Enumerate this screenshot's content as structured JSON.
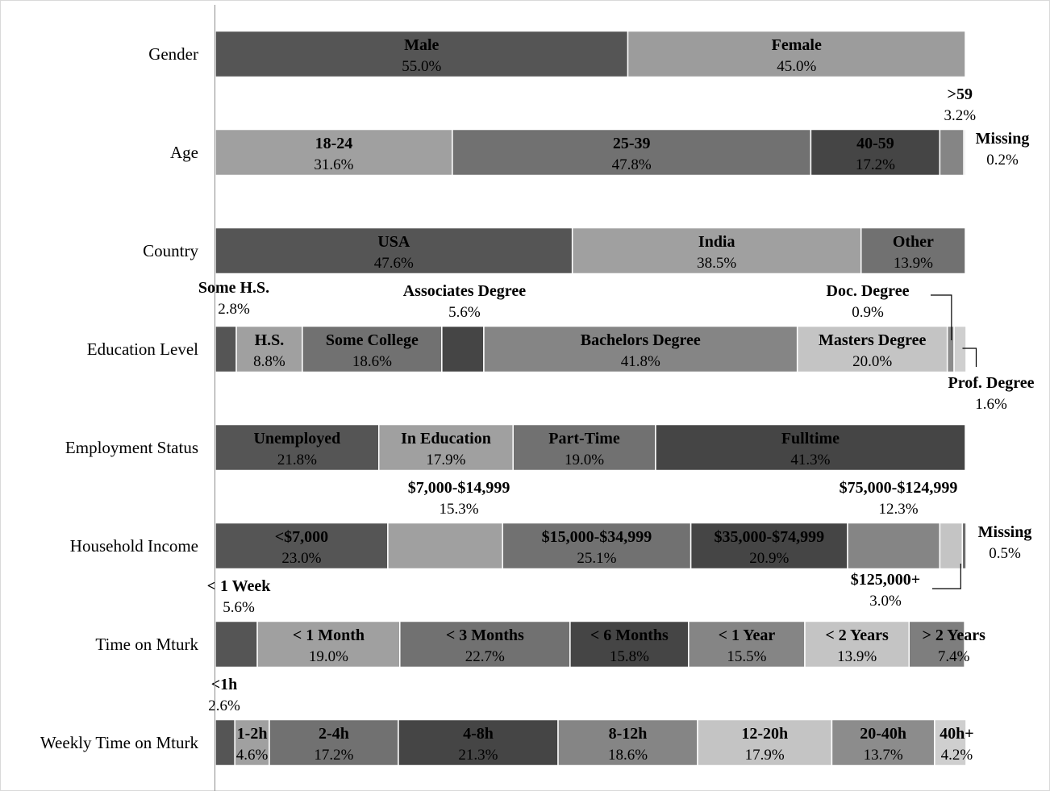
{
  "chart_data": {
    "type": "bar",
    "subtype": "stacked-horizontal-100",
    "categories": [
      "Gender",
      "Age",
      "Country",
      "Education Level",
      "Employment Status",
      "Household Income",
      "Time on Mturk",
      "Weekly Time on Mturk"
    ],
    "xlim": [
      0,
      100
    ],
    "grid": false,
    "legend": "none",
    "rows": [
      {
        "category": "Gender",
        "segments": [
          {
            "label": "Male",
            "value": 55.0,
            "pct": "55.0%",
            "color": "#555555"
          },
          {
            "label": "Female",
            "value": 45.0,
            "pct": "45.0%",
            "color": "#9c9c9c"
          }
        ]
      },
      {
        "category": "Age",
        "segments": [
          {
            "label": "18-24",
            "value": 31.6,
            "pct": "31.6%",
            "color": "#a0a0a0"
          },
          {
            "label": "25-39",
            "value": 47.8,
            "pct": "47.8%",
            "color": "#717171"
          },
          {
            "label": "40-59",
            "value": 17.2,
            "pct": "17.2%",
            "color": "#454545"
          },
          {
            "label": ">59",
            "value": 3.2,
            "pct": "3.2%",
            "color": "#858585"
          },
          {
            "label": "Missing",
            "value": 0.2,
            "pct": "0.2%",
            "color": "#bdbdbd"
          }
        ]
      },
      {
        "category": "Country",
        "segments": [
          {
            "label": "USA",
            "value": 47.6,
            "pct": "47.6%",
            "color": "#555555"
          },
          {
            "label": "India",
            "value": 38.5,
            "pct": "38.5%",
            "color": "#a0a0a0"
          },
          {
            "label": "Other",
            "value": 13.9,
            "pct": "13.9%",
            "color": "#717171"
          }
        ]
      },
      {
        "category": "Education Level",
        "segments": [
          {
            "label": "Some H.S.",
            "value": 2.8,
            "pct": "2.8%",
            "color": "#555555"
          },
          {
            "label": "H.S.",
            "value": 8.8,
            "pct": "8.8%",
            "color": "#a0a0a0"
          },
          {
            "label": "Some College",
            "value": 18.6,
            "pct": "18.6%",
            "color": "#717171"
          },
          {
            "label": "Associates Degree",
            "value": 5.6,
            "pct": "5.6%",
            "color": "#454545"
          },
          {
            "label": "Bachelors Degree",
            "value": 41.8,
            "pct": "41.8%",
            "color": "#858585"
          },
          {
            "label": "Masters Degree",
            "value": 20.0,
            "pct": "20.0%",
            "color": "#c4c4c4"
          },
          {
            "label": "Doc. Degree",
            "value": 0.9,
            "pct": "0.9%",
            "color": "#8c8c8c"
          },
          {
            "label": "Prof. Degree",
            "value": 1.6,
            "pct": "1.6%",
            "color": "#cfcfcf"
          }
        ]
      },
      {
        "category": "Employment Status",
        "segments": [
          {
            "label": "Unemployed",
            "value": 21.8,
            "pct": "21.8%",
            "color": "#555555"
          },
          {
            "label": "In Education",
            "value": 17.9,
            "pct": "17.9%",
            "color": "#a0a0a0"
          },
          {
            "label": "Part-Time",
            "value": 19.0,
            "pct": "19.0%",
            "color": "#717171"
          },
          {
            "label": "Fulltime",
            "value": 41.3,
            "pct": "41.3%",
            "color": "#454545"
          }
        ]
      },
      {
        "category": "Household Income",
        "segments": [
          {
            "label": "<$7,000",
            "value": 23.0,
            "pct": "23.0%",
            "color": "#555555"
          },
          {
            "label": "$7,000-$14,999",
            "value": 15.3,
            "pct": "15.3%",
            "color": "#a0a0a0"
          },
          {
            "label": "$15,000-$34,999",
            "value": 25.1,
            "pct": "25.1%",
            "color": "#717171"
          },
          {
            "label": "$35,000-$74,999",
            "value": 20.9,
            "pct": "20.9%",
            "color": "#454545"
          },
          {
            "label": "$75,000-$124,999",
            "value": 12.3,
            "pct": "12.3%",
            "color": "#858585"
          },
          {
            "label": "$125,000+",
            "value": 3.0,
            "pct": "3.0%",
            "color": "#c4c4c4"
          },
          {
            "label": "Missing",
            "value": 0.5,
            "pct": "0.5%",
            "color": "#6e6e6e"
          }
        ]
      },
      {
        "category": "Time on Mturk",
        "segments": [
          {
            "label": "< 1 Week",
            "value": 5.6,
            "pct": "5.6%",
            "color": "#555555"
          },
          {
            "label": "< 1 Month",
            "value": 19.0,
            "pct": "19.0%",
            "color": "#a0a0a0"
          },
          {
            "label": "< 3 Months",
            "value": 22.7,
            "pct": "22.7%",
            "color": "#717171"
          },
          {
            "label": "< 6 Months",
            "value": 15.8,
            "pct": "15.8%",
            "color": "#454545"
          },
          {
            "label": "< 1 Year",
            "value": 15.5,
            "pct": "15.5%",
            "color": "#858585"
          },
          {
            "label": "< 2 Years",
            "value": 13.9,
            "pct": "13.9%",
            "color": "#c4c4c4"
          },
          {
            "label": "> 2 Years",
            "value": 7.4,
            "pct": "7.4%",
            "color": "#7e7e7e"
          }
        ]
      },
      {
        "category": "Weekly Time on Mturk",
        "segments": [
          {
            "label": "<1h",
            "value": 2.6,
            "pct": "2.6%",
            "color": "#555555"
          },
          {
            "label": "1-2h",
            "value": 4.6,
            "pct": "4.6%",
            "color": "#a0a0a0"
          },
          {
            "label": "2-4h",
            "value": 17.2,
            "pct": "17.2%",
            "color": "#717171"
          },
          {
            "label": "4-8h",
            "value": 21.3,
            "pct": "21.3%",
            "color": "#454545"
          },
          {
            "label": "8-12h",
            "value": 18.6,
            "pct": "18.6%",
            "color": "#858585"
          },
          {
            "label": "12-20h",
            "value": 17.9,
            "pct": "17.9%",
            "color": "#c4c4c4"
          },
          {
            "label": "20-40h",
            "value": 13.7,
            "pct": "13.7%",
            "color": "#8c8c8c"
          },
          {
            "label": "40h+",
            "value": 4.2,
            "pct": "4.2%",
            "color": "#cfcfcf"
          }
        ]
      }
    ]
  }
}
